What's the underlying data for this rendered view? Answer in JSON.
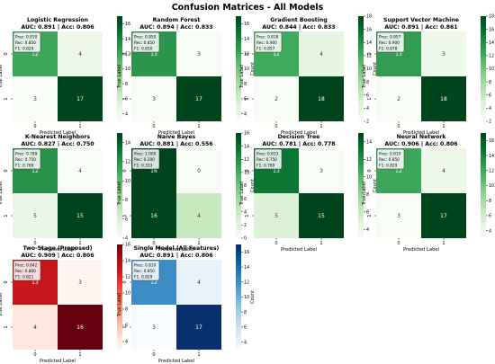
{
  "title": "Confusion Matrices - All Models",
  "common": {
    "xlabel": "Predicted Label",
    "ylabel": "True Label",
    "colorbar_label": "Count",
    "tick_labels": [
      "0",
      "1"
    ]
  },
  "chart_data": [
    {
      "type": "heatmap",
      "title": "Logistic Regression",
      "subtitle": "AUC: 0.891 | Acc: 0.806",
      "matrix": [
        [
          12,
          4
        ],
        [
          3,
          17
        ]
      ],
      "metrics": [
        "Prec: 0.810",
        "Rec: 0.850",
        "F1: 0.829"
      ],
      "colorbar_ticks": [
        4,
        6,
        8,
        10,
        12,
        14,
        16
      ],
      "vmin": 3,
      "vmax": 17,
      "cmap": "greens"
    },
    {
      "type": "heatmap",
      "title": "Random Forest",
      "subtitle": "AUC: 0.894 | Acc: 0.833",
      "matrix": [
        [
          13,
          3
        ],
        [
          3,
          17
        ]
      ],
      "metrics": [
        "Prec: 0.850",
        "Rec: 0.850",
        "F1: 0.850"
      ],
      "colorbar_ticks": [
        4,
        6,
        8,
        10,
        12,
        14,
        16
      ],
      "vmin": 3,
      "vmax": 17,
      "cmap": "greens"
    },
    {
      "type": "heatmap",
      "title": "Gradient Boosting",
      "subtitle": "AUC: 0.844 | Acc: 0.833",
      "matrix": [
        [
          12,
          4
        ],
        [
          2,
          18
        ]
      ],
      "metrics": [
        "Prec: 0.818",
        "Rec: 0.900",
        "F1: 0.857"
      ],
      "colorbar_ticks": [
        2,
        4,
        6,
        8,
        10,
        12,
        14,
        16,
        18
      ],
      "vmin": 2,
      "vmax": 18,
      "cmap": "greens"
    },
    {
      "type": "heatmap",
      "title": "Support Vector Machine",
      "subtitle": "AUC: 0.891 | Acc: 0.861",
      "matrix": [
        [
          13,
          3
        ],
        [
          2,
          18
        ]
      ],
      "metrics": [
        "Prec: 0.857",
        "Rec: 0.900",
        "F1: 0.878"
      ],
      "colorbar_ticks": [
        2,
        4,
        6,
        8,
        10,
        12,
        14,
        16,
        18
      ],
      "vmin": 2,
      "vmax": 18,
      "cmap": "greens"
    },
    {
      "type": "heatmap",
      "title": "K-Nearest Neighbors",
      "subtitle": "AUC: 0.827 | Acc: 0.750",
      "matrix": [
        [
          12,
          4
        ],
        [
          5,
          15
        ]
      ],
      "metrics": [
        "Prec: 0.789",
        "Rec: 0.750",
        "F1: 0.769"
      ],
      "colorbar_ticks": [
        4,
        6,
        8,
        10,
        12,
        14
      ],
      "vmin": 4,
      "vmax": 15,
      "cmap": "greens"
    },
    {
      "type": "heatmap",
      "title": "Naive Bayes",
      "subtitle": "AUC: 0.881 | Acc: 0.556",
      "matrix": [
        [
          16,
          0
        ],
        [
          16,
          4
        ]
      ],
      "metrics": [
        "Prec: 1.000",
        "Rec: 0.200",
        "F1: 0.333"
      ],
      "colorbar_ticks": [
        0,
        2,
        4,
        6,
        8,
        10,
        12,
        14,
        16
      ],
      "vmin": 0,
      "vmax": 16,
      "cmap": "greens"
    },
    {
      "type": "heatmap",
      "title": "Decision Tree",
      "subtitle": "AUC: 0.781 | Acc: 0.778",
      "matrix": [
        [
          13,
          3
        ],
        [
          5,
          15
        ]
      ],
      "metrics": [
        "Prec: 0.833",
        "Rec: 0.750",
        "F1: 0.789"
      ],
      "colorbar_ticks": [
        4,
        6,
        8,
        10,
        12,
        14
      ],
      "vmin": 3,
      "vmax": 15,
      "cmap": "greens"
    },
    {
      "type": "heatmap",
      "title": "Neural Network",
      "subtitle": "AUC: 0.906 | Acc: 0.806",
      "matrix": [
        [
          12,
          4
        ],
        [
          3,
          17
        ]
      ],
      "metrics": [
        "Prec: 0.810",
        "Rec: 0.850",
        "F1: 0.829"
      ],
      "colorbar_ticks": [
        4,
        6,
        8,
        10,
        12,
        14,
        16
      ],
      "vmin": 3,
      "vmax": 17,
      "cmap": "greens"
    },
    {
      "type": "heatmap",
      "title": "Two-Stage (Proposed)",
      "subtitle": "AUC: 0.909 | Acc: 0.806",
      "matrix": [
        [
          13,
          3
        ],
        [
          4,
          16
        ]
      ],
      "metrics": [
        "Prec: 0.842",
        "Rec: 0.800",
        "F1: 0.821"
      ],
      "colorbar_ticks": [
        4,
        6,
        8,
        10,
        12,
        14,
        16
      ],
      "vmin": 3,
      "vmax": 16,
      "cmap": "reds"
    },
    {
      "type": "heatmap",
      "title": "Single Model (All Features)",
      "subtitle": "AUC: 0.891 | Acc: 0.806",
      "matrix": [
        [
          12,
          4
        ],
        [
          3,
          17
        ]
      ],
      "metrics": [
        "Prec: 0.810",
        "Rec: 0.850",
        "F1: 0.829"
      ],
      "colorbar_ticks": [
        4,
        6,
        8,
        10,
        12,
        14,
        16
      ],
      "vmin": 3,
      "vmax": 17,
      "cmap": "blues"
    }
  ]
}
